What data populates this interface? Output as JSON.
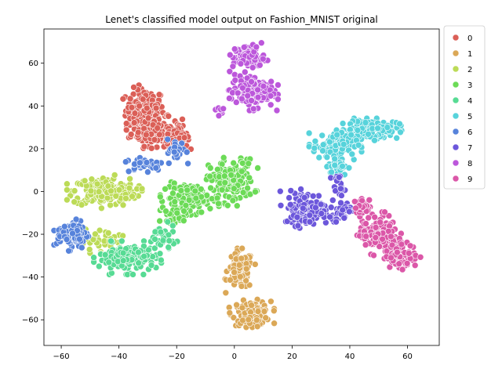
{
  "chart_data": {
    "type": "scatter",
    "title": "Lenet's classified model output on Fashion_MNIST original",
    "xlabel": "",
    "ylabel": "",
    "xlim": [
      -66,
      71
    ],
    "ylim": [
      -72,
      76
    ],
    "xticks": [
      -60,
      -40,
      -20,
      0,
      20,
      40,
      60
    ],
    "yticks": [
      -60,
      -40,
      -20,
      0,
      20,
      40,
      60
    ],
    "xtick_labels": [
      "−60",
      "−40",
      "−20",
      "0",
      "20",
      "40",
      "60"
    ],
    "ytick_labels": [
      "−60",
      "−40",
      "−20",
      "0",
      "20",
      "40",
      "60"
    ],
    "grid": false,
    "legend_position": "outside-top-right",
    "series": [
      {
        "name": "0",
        "color": "#db5f57",
        "clusters": [
          {
            "cx": -31,
            "cy": 38,
            "rx": 6,
            "ry": 9,
            "n": 150
          },
          {
            "cx": -27,
            "cy": 28,
            "rx": 8,
            "ry": 6,
            "n": 150
          },
          {
            "cx": -20,
            "cy": 25,
            "rx": 4,
            "ry": 4,
            "n": 50
          }
        ]
      },
      {
        "name": "1",
        "color": "#dba857",
        "clusters": [
          {
            "cx": 2,
            "cy": -37,
            "rx": 4,
            "ry": 8,
            "n": 110
          },
          {
            "cx": 6,
            "cy": -57,
            "rx": 6,
            "ry": 5,
            "n": 120
          }
        ]
      },
      {
        "name": "2",
        "color": "#bcdb57",
        "clusters": [
          {
            "cx": -45,
            "cy": 0,
            "rx": 10,
            "ry": 6,
            "n": 200
          },
          {
            "cx": -46,
            "cy": -24,
            "rx": 6,
            "ry": 6,
            "n": 40
          }
        ]
      },
      {
        "name": "3",
        "color": "#6cdb57",
        "clusters": [
          {
            "cx": -1,
            "cy": 5,
            "rx": 7,
            "ry": 9,
            "n": 160
          },
          {
            "cx": -14,
            "cy": -3,
            "rx": 9,
            "ry": 6,
            "n": 110
          },
          {
            "cx": -20,
            "cy": -10,
            "rx": 5,
            "ry": 4,
            "n": 40
          }
        ]
      },
      {
        "name": "4",
        "color": "#57db94",
        "clusters": [
          {
            "cx": -37,
            "cy": -31,
            "rx": 9,
            "ry": 6,
            "n": 160
          },
          {
            "cx": -25,
            "cy": -22,
            "rx": 4,
            "ry": 6,
            "n": 40
          }
        ]
      },
      {
        "name": "5",
        "color": "#57d3db",
        "clusters": [
          {
            "cx": 48,
            "cy": 29,
            "rx": 8,
            "ry": 4,
            "n": 150
          },
          {
            "cx": 35,
            "cy": 22,
            "rx": 7,
            "ry": 6,
            "n": 110
          },
          {
            "cx": 36,
            "cy": 12,
            "rx": 3,
            "ry": 4,
            "n": 40
          }
        ]
      },
      {
        "name": "6",
        "color": "#5783db",
        "clusters": [
          {
            "cx": -56,
            "cy": -20,
            "rx": 5,
            "ry": 6,
            "n": 90
          },
          {
            "cx": -31,
            "cy": 13,
            "rx": 6,
            "ry": 3,
            "n": 40
          },
          {
            "cx": -20,
            "cy": 19,
            "rx": 3,
            "ry": 5,
            "n": 30
          }
        ]
      },
      {
        "name": "7",
        "color": "#6c57db",
        "clusters": [
          {
            "cx": 25,
            "cy": -8,
            "rx": 7,
            "ry": 7,
            "n": 150
          },
          {
            "cx": 37,
            "cy": -9,
            "rx": 3,
            "ry": 4,
            "n": 40
          },
          {
            "cx": 36,
            "cy": 3,
            "rx": 2,
            "ry": 4,
            "n": 20
          }
        ]
      },
      {
        "name": "8",
        "color": "#bc57db",
        "clusters": [
          {
            "cx": 5,
            "cy": 63,
            "rx": 5,
            "ry": 5,
            "n": 90
          },
          {
            "cx": 6,
            "cy": 47,
            "rx": 7,
            "ry": 7,
            "n": 140
          },
          {
            "cx": -5,
            "cy": 38,
            "rx": 2,
            "ry": 2,
            "n": 10
          }
        ]
      },
      {
        "name": "9",
        "color": "#db57a8",
        "clusters": [
          {
            "cx": 50,
            "cy": -20,
            "rx": 6,
            "ry": 8,
            "n": 150
          },
          {
            "cx": 58,
            "cy": -30,
            "rx": 5,
            "ry": 5,
            "n": 90
          },
          {
            "cx": 45,
            "cy": -7,
            "rx": 3,
            "ry": 3,
            "n": 30
          }
        ]
      }
    ]
  }
}
